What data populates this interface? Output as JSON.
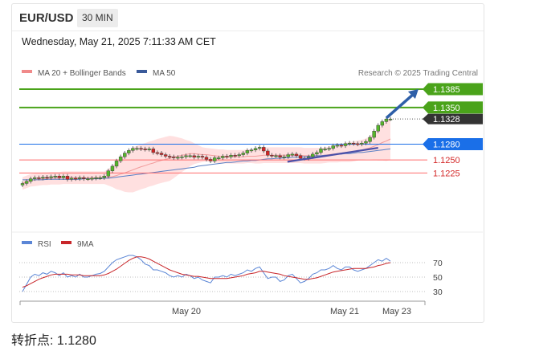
{
  "header": {
    "pair": "EUR/USD",
    "timeframe": "30 MIN"
  },
  "datetime": "Wednesday, May 21, 2025 7:11:33 AM CET",
  "legend": {
    "ma20_bb": "MA 20 + Bollinger Bands",
    "ma50": "MA 50",
    "credit": "Research © 2025 Trading Central",
    "rsi": "RSI",
    "ma9": "9MA"
  },
  "footer": {
    "pivot_label": "转折点:",
    "pivot_value": "1.1280"
  },
  "colors": {
    "bull": "#56b52b",
    "bear": "#d02424",
    "resistance": "#4aa31a",
    "support": "#ff6b6b",
    "pivot": "#1a6fe8",
    "price_tag": "#333333",
    "band": "#ffd6d6",
    "ma20": "#f29c9c",
    "ma50": "#5a7fc4",
    "trendline": "#4a4fa8",
    "arrow": "#2e5fa8",
    "rsi": "#5b86d6",
    "rsi_ma": "#c8262a"
  },
  "chart_data": [
    {
      "type": "candlestick",
      "title": "EUR/USD",
      "timeframe": "30 MIN",
      "ylim": [
        1.1195,
        1.1395
      ],
      "x_ticks": [
        "May 20",
        "May 21",
        "May 23"
      ],
      "levels": [
        {
          "label": "1.1385",
          "value": 1.1385,
          "kind": "resistance"
        },
        {
          "label": "1.1350",
          "value": 1.135,
          "kind": "resistance"
        },
        {
          "label": "1.1328",
          "value": 1.1328,
          "kind": "last_price"
        },
        {
          "label": "1.1280",
          "value": 1.128,
          "kind": "pivot"
        },
        {
          "label": "1.1250",
          "value": 1.125,
          "kind": "support"
        },
        {
          "label": "1.1225",
          "value": 1.1225,
          "kind": "support"
        }
      ],
      "close": [
        1.1205,
        1.1209,
        1.1214,
        1.1216,
        1.1215,
        1.1217,
        1.1216,
        1.1218,
        1.1219,
        1.1216,
        1.1219,
        1.1213,
        1.1215,
        1.1214,
        1.1216,
        1.1214,
        1.1214,
        1.1215,
        1.1216,
        1.1216,
        1.1219,
        1.1229,
        1.1238,
        1.1248,
        1.1256,
        1.1263,
        1.1268,
        1.1272,
        1.1272,
        1.1271,
        1.127,
        1.1271,
        1.1264,
        1.1263,
        1.126,
        1.1257,
        1.1256,
        1.1254,
        1.1255,
        1.1256,
        1.1258,
        1.1258,
        1.1255,
        1.1257,
        1.1255,
        1.1251,
        1.1248,
        1.1254,
        1.1254,
        1.1257,
        1.1256,
        1.1259,
        1.1258,
        1.126,
        1.1263,
        1.1268,
        1.1269,
        1.1272,
        1.1274,
        1.1267,
        1.1259,
        1.1258,
        1.1258,
        1.1255,
        1.1256,
        1.126,
        1.1261,
        1.1258,
        1.1253,
        1.1253,
        1.1256,
        1.1261,
        1.1264,
        1.1271,
        1.1271,
        1.1272,
        1.1277,
        1.1278,
        1.1277,
        1.1281,
        1.1282,
        1.1281,
        1.128,
        1.1282,
        1.1285,
        1.1293,
        1.1305,
        1.1316,
        1.1323,
        1.1328,
        1.1328
      ],
      "ma20": [
        1.1205,
        1.1208,
        1.1211,
        1.1212,
        1.1213,
        1.1214,
        1.1214,
        1.1215,
        1.1215,
        1.1215,
        1.1216,
        1.1216,
        1.1216,
        1.1216,
        1.1216,
        1.1216,
        1.1216,
        1.1216,
        1.1216,
        1.1216,
        1.1216,
        1.1217,
        1.1218,
        1.122,
        1.1223,
        1.1225,
        1.1228,
        1.1231,
        1.1234,
        1.1237,
        1.1239,
        1.1242,
        1.1244,
        1.1247,
        1.1249,
        1.1251,
        1.1253,
        1.1255,
        1.1257,
        1.1259,
        1.126,
        1.1262,
        1.1262,
        1.1261,
        1.126,
        1.126,
        1.1259,
        1.1258,
        1.1257,
        1.1257,
        1.1256,
        1.1256,
        1.1256,
        1.1256,
        1.1256,
        1.1257,
        1.1257,
        1.1257,
        1.1258,
        1.1259,
        1.1259,
        1.1259,
        1.1259,
        1.1259,
        1.1259,
        1.1259,
        1.1259,
        1.1259,
        1.1259,
        1.1258,
        1.1258,
        1.1258,
        1.1258,
        1.1258,
        1.1259,
        1.126,
        1.1261,
        1.1262,
        1.1263,
        1.1264,
        1.1265,
        1.1266,
        1.1268,
        1.1269,
        1.1271,
        1.1273,
        1.1276,
        1.1279,
        1.1283,
        1.1286,
        1.129
      ],
      "bb_width": [
        0.0012,
        0.0012,
        0.0012,
        0.0012,
        0.0012,
        0.0012,
        0.0012,
        0.0012,
        0.0012,
        0.0012,
        0.0012,
        0.0012,
        0.0012,
        0.0012,
        0.0012,
        0.0012,
        0.0012,
        0.0012,
        0.0012,
        0.0012,
        0.0012,
        0.0016,
        0.002,
        0.0026,
        0.0031,
        0.0036,
        0.004,
        0.0043,
        0.0043,
        0.0043,
        0.0043,
        0.0043,
        0.0043,
        0.0043,
        0.0043,
        0.0043,
        0.0043,
        0.004,
        0.0036,
        0.0032,
        0.0028,
        0.0024,
        0.002,
        0.0017,
        0.0014,
        0.0013,
        0.0013,
        0.0013,
        0.0013,
        0.0013,
        0.0013,
        0.0013,
        0.0013,
        0.0013,
        0.0013,
        0.0013,
        0.0013,
        0.0014,
        0.0015,
        0.0015,
        0.0015,
        0.0015,
        0.0015,
        0.0015,
        0.0015,
        0.0015,
        0.0015,
        0.0015,
        0.0015,
        0.0015,
        0.0015,
        0.0015,
        0.0015,
        0.0015,
        0.0015,
        0.0015,
        0.0016,
        0.0017,
        0.0017,
        0.0018,
        0.0019,
        0.0019,
        0.0019,
        0.0019,
        0.002,
        0.0022,
        0.0026,
        0.003,
        0.0034,
        0.0038,
        0.004
      ],
      "ma50": [
        1.1212,
        1.1212,
        1.1212,
        1.1212,
        1.1212,
        1.1212,
        1.1213,
        1.1213,
        1.1213,
        1.1213,
        1.1213,
        1.1213,
        1.1213,
        1.1213,
        1.1213,
        1.1214,
        1.1214,
        1.1214,
        1.1214,
        1.1214,
        1.1215,
        1.1215,
        1.1216,
        1.1217,
        1.1218,
        1.1219,
        1.122,
        1.1221,
        1.1222,
        1.1223,
        1.1224,
        1.1225,
        1.1226,
        1.1227,
        1.1228,
        1.1229,
        1.123,
        1.1231,
        1.1232,
        1.1233,
        1.1234,
        1.1235,
        1.1236,
        1.1238,
        1.1239,
        1.124,
        1.1241,
        1.1242,
        1.1243,
        1.1244,
        1.1245,
        1.1245,
        1.1246,
        1.1247,
        1.1248,
        1.1248,
        1.1249,
        1.1249,
        1.125,
        1.1251,
        1.1252,
        1.1252,
        1.1253,
        1.1253,
        1.1254,
        1.1254,
        1.1255,
        1.1255,
        1.1256,
        1.1256,
        1.1257,
        1.1257,
        1.1258,
        1.1258,
        1.1259,
        1.1259,
        1.126,
        1.1261,
        1.1261,
        1.1262,
        1.1262,
        1.1263,
        1.1264,
        1.1264,
        1.1265,
        1.1266,
        1.1267,
        1.1268,
        1.1269,
        1.127,
        1.1271
      ],
      "trendline": {
        "from": [
          66,
          1.1248
        ],
        "to": [
          87,
          1.1273
        ]
      },
      "arrow": {
        "from": [
          89,
          1.133
        ],
        "to": [
          94,
          1.1385
        ]
      }
    },
    {
      "type": "line",
      "title": "RSI",
      "y_ticks": [
        70,
        50,
        30
      ],
      "series": [
        {
          "name": "RSI",
          "values": [
            30,
            40,
            50,
            54,
            52,
            56,
            54,
            58,
            56,
            52,
            56,
            50,
            52,
            50,
            54,
            50,
            50,
            52,
            54,
            55,
            58,
            64,
            70,
            74,
            76,
            78,
            80,
            80,
            78,
            74,
            68,
            66,
            60,
            60,
            58,
            56,
            52,
            50,
            52,
            50,
            54,
            52,
            48,
            50,
            46,
            44,
            42,
            50,
            50,
            52,
            50,
            54,
            52,
            54,
            56,
            60,
            58,
            62,
            64,
            56,
            48,
            50,
            50,
            44,
            46,
            52,
            54,
            48,
            42,
            44,
            48,
            54,
            56,
            60,
            60,
            62,
            66,
            62,
            60,
            64,
            64,
            60,
            58,
            60,
            62,
            66,
            70,
            74,
            72,
            76,
            72
          ]
        },
        {
          "name": "9MA",
          "values": [
            36,
            38,
            41,
            44,
            47,
            49,
            51,
            53,
            54,
            54,
            54,
            54,
            53,
            53,
            53,
            52,
            52,
            52,
            52,
            52,
            53,
            55,
            58,
            61,
            65,
            69,
            73,
            76,
            78,
            78,
            77,
            75,
            72,
            69,
            66,
            63,
            60,
            58,
            56,
            54,
            53,
            52,
            51,
            51,
            50,
            49,
            48,
            48,
            48,
            48,
            48,
            49,
            50,
            51,
            52,
            54,
            55,
            56,
            58,
            58,
            57,
            56,
            55,
            54,
            52,
            51,
            50,
            49,
            48,
            47,
            47,
            48,
            49,
            51,
            53,
            55,
            57,
            58,
            59,
            60,
            61,
            62,
            62,
            62,
            62,
            63,
            64,
            66,
            67,
            69,
            70
          ]
        }
      ]
    }
  ]
}
